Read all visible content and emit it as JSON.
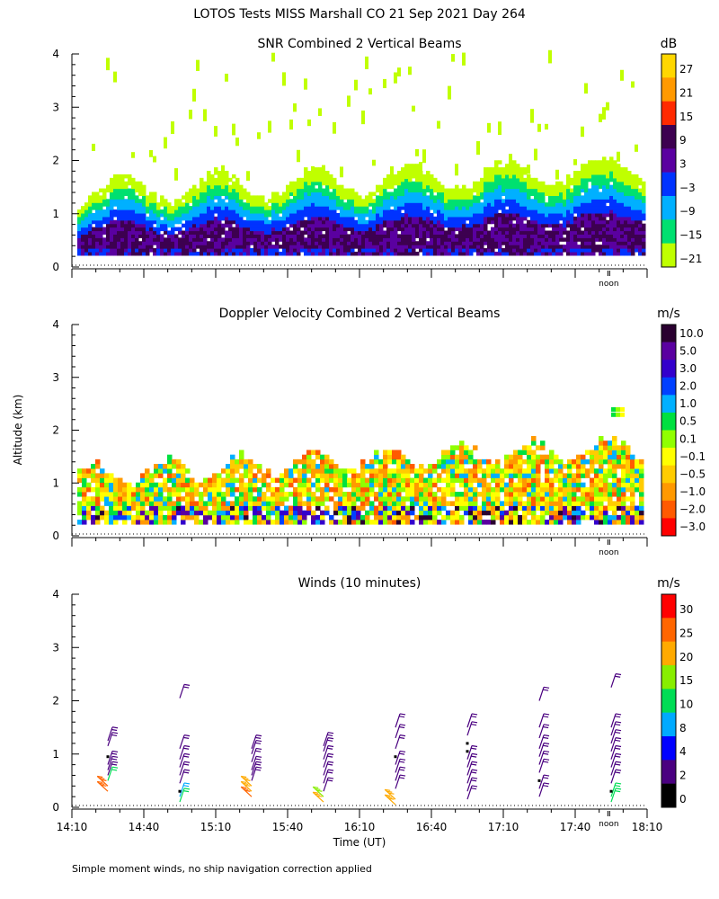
{
  "figure": {
    "title": "LOTOS Tests MISS Marshall CO  21 Sep 2021 Day 264",
    "y_axis_label": "Altitude (km)",
    "x_axis_label": "Time (UT)",
    "footnote": "Simple moment winds, no ship navigation correction applied",
    "noon_label": "noon"
  },
  "chart_data": [
    {
      "type": "heatmap",
      "title": "SNR Combined 2 Vertical Beams",
      "unit": "dB",
      "xlabel": "Time (UT)",
      "ylabel": "Altitude (km)",
      "xlim": [
        "14:10",
        "18:10"
      ],
      "ylim": [
        0,
        4
      ],
      "yticks": [
        0,
        1,
        2,
        3,
        4
      ],
      "colorbar": {
        "labels": [
          "27",
          "21",
          "15",
          "9",
          "3",
          "−3",
          "−9",
          "−15",
          "−21"
        ],
        "colors": [
          "#ffd700",
          "#ff9900",
          "#ff2a00",
          "#3d0050",
          "#5a00a0",
          "#0033ff",
          "#00b0ff",
          "#00e070",
          "#c0ff00"
        ]
      },
      "note": "Signal present mainly 0.3-1.5 km; strongest (9 dB) near 0.3-0.8 km, scattered -21 dB returns up to ~4 km"
    },
    {
      "type": "heatmap",
      "title": "Doppler Velocity Combined 2 Vertical Beams",
      "unit": "m/s",
      "xlabel": "Time (UT)",
      "ylabel": "Altitude (km)",
      "xlim": [
        "14:10",
        "18:10"
      ],
      "ylim": [
        0,
        4
      ],
      "yticks": [
        0,
        1,
        2,
        3,
        4
      ],
      "colorbar": {
        "labels": [
          "10.0",
          "5.0",
          "3.0",
          "2.0",
          "1.0",
          "0.5",
          "0.1",
          "−0.1",
          "−0.5",
          "−1.0",
          "−2.0",
          "−3.0"
        ],
        "colors": [
          "#2a0030",
          "#5a00a0",
          "#3300cc",
          "#0040ff",
          "#00b0ff",
          "#00e040",
          "#90ff00",
          "#ffff00",
          "#ffcc00",
          "#ff9900",
          "#ff5a00",
          "#ff0000"
        ]
      },
      "note": "Velocities mostly -1.0 to 0.5 m/s between 0.3 and 1.5 km"
    },
    {
      "type": "scatter",
      "title": "Winds (10 minutes)",
      "unit": "m/s",
      "xlabel": "Time (UT)",
      "ylabel": "Altitude (km)",
      "xlim": [
        "14:10",
        "18:10"
      ],
      "ylim": [
        0,
        4
      ],
      "yticks": [
        0,
        1,
        2,
        3,
        4
      ],
      "xticks": [
        "14:10",
        "14:40",
        "15:10",
        "15:40",
        "16:10",
        "16:40",
        "17:10",
        "17:40",
        "18:10"
      ],
      "colorbar": {
        "labels": [
          "30",
          "25",
          "20",
          "15",
          "10",
          "8",
          "4",
          "2",
          "0"
        ],
        "colors": [
          "#ff0000",
          "#ff6600",
          "#ffaa00",
          "#88ee00",
          "#00dd55",
          "#00aaff",
          "#0000ff",
          "#4a0080",
          "#000000"
        ]
      },
      "profiles": [
        {
          "time": "14:25",
          "levels": [
            {
              "alt": 0.3,
              "speed": 27
            },
            {
              "alt": 0.4,
              "speed": 25
            },
            {
              "alt": 0.5,
              "speed": 10
            },
            {
              "alt": 0.6,
              "speed": 3
            },
            {
              "alt": 0.7,
              "speed": 3
            },
            {
              "alt": 0.8,
              "speed": 2
            },
            {
              "alt": 0.95,
              "speed": 1
            },
            {
              "alt": 1.15,
              "speed": 2
            },
            {
              "alt": 1.25,
              "speed": 2
            }
          ]
        },
        {
          "time": "14:55",
          "levels": [
            {
              "alt": 0.1,
              "speed": 10
            },
            {
              "alt": 0.2,
              "speed": 8
            },
            {
              "alt": 0.3,
              "speed": 1
            },
            {
              "alt": 0.45,
              "speed": 3
            },
            {
              "alt": 0.6,
              "speed": 3
            },
            {
              "alt": 0.75,
              "speed": 3
            },
            {
              "alt": 0.9,
              "speed": 3
            },
            {
              "alt": 1.1,
              "speed": 3
            },
            {
              "alt": 2.05,
              "speed": 3
            }
          ]
        },
        {
          "time": "15:25",
          "levels": [
            {
              "alt": 0.2,
              "speed": 25
            },
            {
              "alt": 0.3,
              "speed": 24
            },
            {
              "alt": 0.4,
              "speed": 20
            },
            {
              "alt": 0.5,
              "speed": 3
            },
            {
              "alt": 0.6,
              "speed": 3
            },
            {
              "alt": 0.7,
              "speed": 3
            },
            {
              "alt": 0.85,
              "speed": 3
            },
            {
              "alt": 1.0,
              "speed": 3
            },
            {
              "alt": 1.1,
              "speed": 3
            }
          ]
        },
        {
          "time": "15:55",
          "levels": [
            {
              "alt": 0.1,
              "speed": 20
            },
            {
              "alt": 0.2,
              "speed": 18
            },
            {
              "alt": 0.3,
              "speed": 3
            },
            {
              "alt": 0.45,
              "speed": 3
            },
            {
              "alt": 0.6,
              "speed": 3
            },
            {
              "alt": 0.75,
              "speed": 3
            },
            {
              "alt": 0.9,
              "speed": 3
            },
            {
              "alt": 1.05,
              "speed": 3
            },
            {
              "alt": 1.15,
              "speed": 3
            }
          ]
        },
        {
          "time": "16:25",
          "levels": [
            {
              "alt": 0.05,
              "speed": 22
            },
            {
              "alt": 0.15,
              "speed": 21
            },
            {
              "alt": 0.35,
              "speed": 3
            },
            {
              "alt": 0.5,
              "speed": 3
            },
            {
              "alt": 0.65,
              "speed": 3
            },
            {
              "alt": 0.8,
              "speed": 3
            },
            {
              "alt": 0.95,
              "speed": 1
            },
            {
              "alt": 1.1,
              "speed": 3
            },
            {
              "alt": 1.3,
              "speed": 3
            },
            {
              "alt": 1.5,
              "speed": 3
            }
          ]
        },
        {
          "time": "16:55",
          "levels": [
            {
              "alt": 0.15,
              "speed": 3
            },
            {
              "alt": 0.3,
              "speed": 3
            },
            {
              "alt": 0.45,
              "speed": 3
            },
            {
              "alt": 0.6,
              "speed": 3
            },
            {
              "alt": 0.75,
              "speed": 3
            },
            {
              "alt": 0.9,
              "speed": 3
            },
            {
              "alt": 1.05,
              "speed": 1
            },
            {
              "alt": 1.2,
              "speed": 1
            },
            {
              "alt": 1.35,
              "speed": 3
            },
            {
              "alt": 1.5,
              "speed": 3
            }
          ]
        },
        {
          "time": "17:25",
          "levels": [
            {
              "alt": 0.2,
              "speed": 3
            },
            {
              "alt": 0.35,
              "speed": 3
            },
            {
              "alt": 0.5,
              "speed": 1
            },
            {
              "alt": 0.65,
              "speed": 3
            },
            {
              "alt": 0.8,
              "speed": 3
            },
            {
              "alt": 0.95,
              "speed": 3
            },
            {
              "alt": 1.1,
              "speed": 3
            },
            {
              "alt": 1.3,
              "speed": 3
            },
            {
              "alt": 1.5,
              "speed": 3
            },
            {
              "alt": 2.0,
              "speed": 3
            }
          ]
        },
        {
          "time": "17:55",
          "levels": [
            {
              "alt": 0.1,
              "speed": 12
            },
            {
              "alt": 0.2,
              "speed": 10
            },
            {
              "alt": 0.3,
              "speed": 1
            },
            {
              "alt": 0.45,
              "speed": 3
            },
            {
              "alt": 0.6,
              "speed": 3
            },
            {
              "alt": 0.75,
              "speed": 3
            },
            {
              "alt": 0.9,
              "speed": 3
            },
            {
              "alt": 1.05,
              "speed": 3
            },
            {
              "alt": 1.2,
              "speed": 3
            },
            {
              "alt": 1.35,
              "speed": 3
            },
            {
              "alt": 1.5,
              "speed": 3
            },
            {
              "alt": 2.25,
              "speed": 3
            }
          ]
        }
      ]
    }
  ]
}
